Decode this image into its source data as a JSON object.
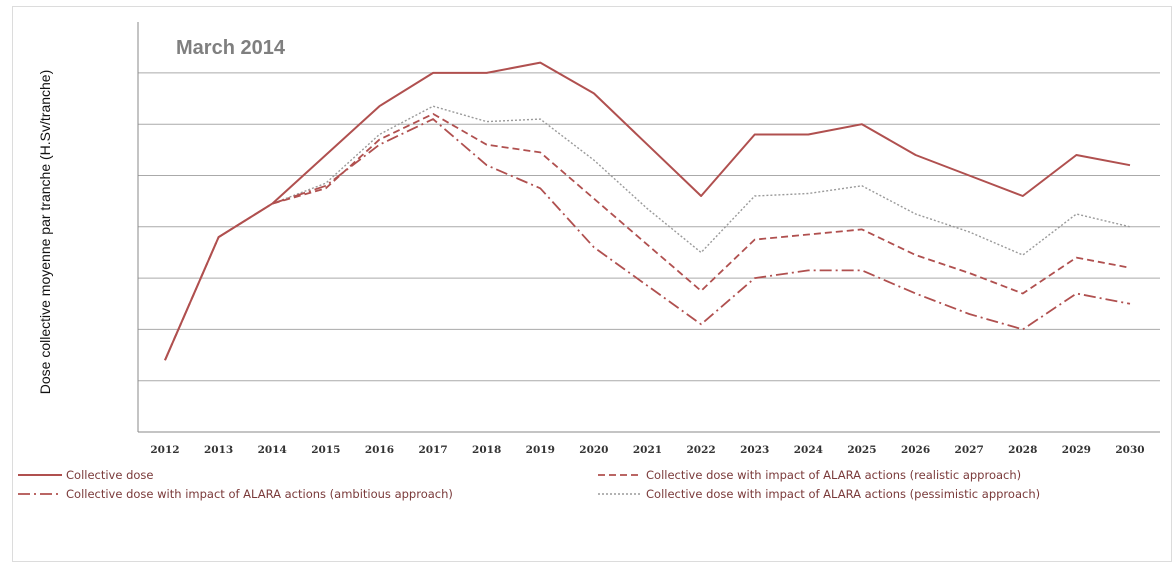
{
  "chart_data": {
    "type": "line",
    "title": "March 2014",
    "xlabel": "",
    "ylabel": "Dose collective moyenne par tranche (H.Sv/tranche)",
    "ylim": [
      0,
      7
    ],
    "grid": true,
    "legend_position": "bottom",
    "categories": [
      "2012",
      "2013",
      "2014",
      "2015",
      "2016",
      "2017",
      "2018",
      "2019",
      "2020",
      "2021",
      "2022",
      "2023",
      "2024",
      "2025",
      "2026",
      "2027",
      "2028",
      "2029",
      "2030"
    ],
    "series": [
      {
        "name": "Collective dose",
        "style": "solid",
        "color": "#b0504f",
        "values": [
          1.4,
          3.8,
          4.45,
          5.4,
          6.35,
          7.0,
          7.0,
          7.2,
          6.6,
          5.6,
          4.6,
          5.8,
          5.8,
          6.0,
          5.4,
          5.0,
          4.6,
          5.4,
          5.2
        ]
      },
      {
        "name": "Collective dose with impact of ALARA actions (realistic approach)",
        "style": "dashed",
        "color": "#b0504f",
        "values": [
          1.4,
          3.8,
          4.45,
          4.75,
          5.7,
          6.2,
          5.6,
          5.45,
          4.55,
          3.65,
          2.75,
          3.75,
          3.85,
          3.95,
          3.45,
          3.1,
          2.7,
          3.4,
          3.2
        ]
      },
      {
        "name": "Collective dose with impact of ALARA actions (ambitious approach)",
        "style": "dashdot",
        "color": "#b0504f",
        "values": [
          1.4,
          3.8,
          4.45,
          4.8,
          5.6,
          6.1,
          5.2,
          4.75,
          3.6,
          2.85,
          2.1,
          3.0,
          3.15,
          3.15,
          2.7,
          2.3,
          2.0,
          2.7,
          2.5
        ]
      },
      {
        "name": "Collective dose with impact of ALARA actions (pessimistic approach)",
        "style": "dotted",
        "color": "#9a9a9a",
        "values": [
          1.4,
          3.8,
          4.45,
          4.85,
          5.8,
          6.35,
          6.05,
          6.1,
          5.3,
          4.35,
          3.5,
          4.6,
          4.65,
          4.8,
          4.25,
          3.9,
          3.45,
          4.25,
          4.0
        ]
      }
    ]
  },
  "colors": {
    "grid": "#aaaaaa",
    "axis": "#888888",
    "title": "#7f7f7f"
  }
}
